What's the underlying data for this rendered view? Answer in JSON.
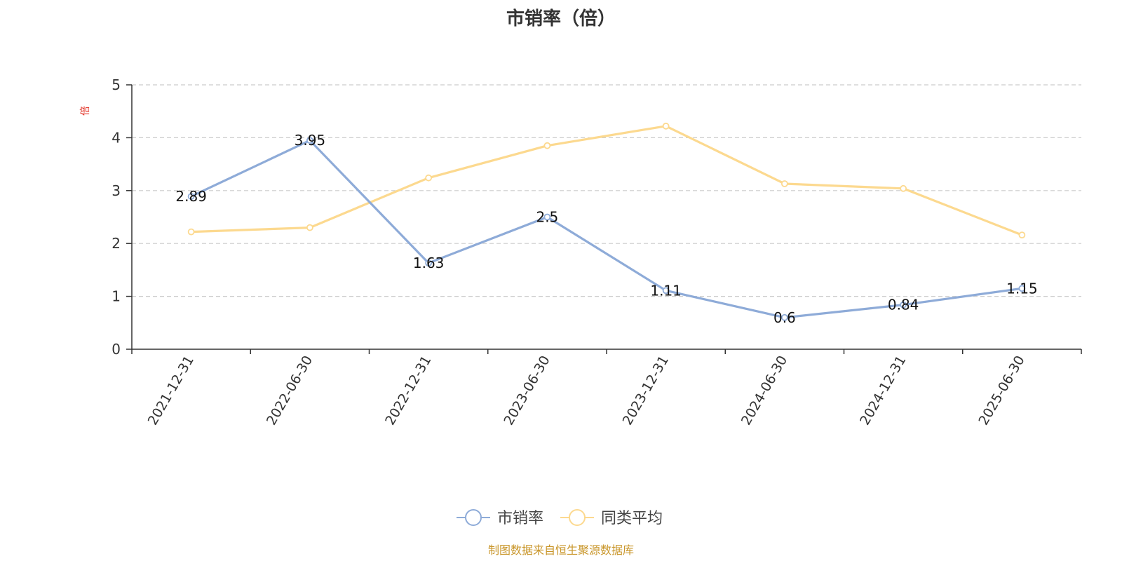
{
  "chart_data": {
    "type": "line",
    "title": "市销率（倍）",
    "ylabel": "倍",
    "ylim": [
      0,
      5
    ],
    "yticks": [
      0,
      1,
      2,
      3,
      4,
      5
    ],
    "grid": true,
    "legend_position": "bottom",
    "categories": [
      "2021-12-31",
      "2022-06-30",
      "2022-12-31",
      "2023-06-30",
      "2023-12-31",
      "2024-06-30",
      "2024-12-31",
      "2025-06-30"
    ],
    "series": [
      {
        "name": "市销率",
        "color": "#8eabd8",
        "values": [
          2.89,
          3.95,
          1.63,
          2.5,
          1.11,
          0.6,
          0.84,
          1.15
        ],
        "labels": [
          "2.89",
          "3.95",
          "1.63",
          "2.5",
          "1.11",
          "0.6",
          "0.84",
          "1.15"
        ]
      },
      {
        "name": "同类平均",
        "color": "#fcd98f",
        "values": [
          2.22,
          2.3,
          3.24,
          3.85,
          4.22,
          3.13,
          3.04,
          2.16
        ]
      }
    ]
  },
  "footer": {
    "source": "制图数据来自恒生聚源数据库",
    "source_color": "#c9962a"
  }
}
